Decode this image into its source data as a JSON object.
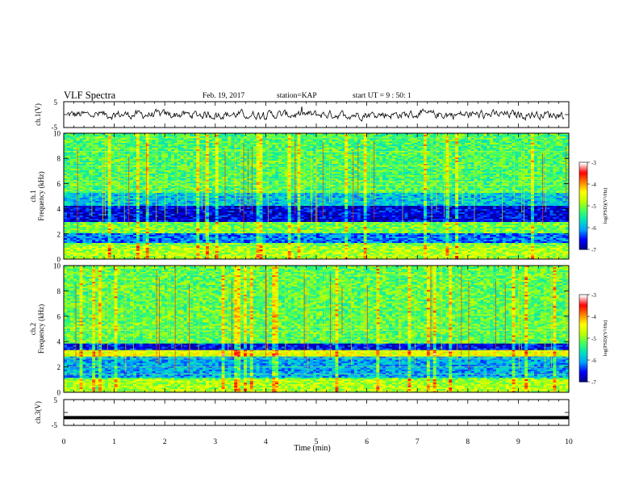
{
  "header": {
    "title": "VLF Spectra",
    "date": "Feb. 19, 2017",
    "station": "station=KAP",
    "start": "start UT =  9 : 50: 1"
  },
  "chart_data": [
    {
      "type": "line",
      "ylabel": "ch.1(V)",
      "ylim": [
        -5,
        5
      ],
      "yticks": [
        "5",
        "-5"
      ],
      "xlim": [
        0,
        10
      ],
      "description_values": "noisy waveform centered near 0 V, amplitude roughly -2.5 to +2.5 V"
    },
    {
      "type": "heatmap",
      "ylabel_line1": "ch.1",
      "ylabel_line2": "Frequency (kHz)",
      "ylim": [
        0,
        10
      ],
      "yticks": [
        "0",
        "2",
        "4",
        "6",
        "8",
        "10"
      ],
      "xlim": [
        0,
        10
      ],
      "colorbar": {
        "label": "log(PSD)(V²/Hz)",
        "range": [
          -7,
          -3
        ],
        "ticks": [
          "-3",
          "-4",
          "-5",
          "-6",
          "-7"
        ]
      }
    },
    {
      "type": "heatmap",
      "ylabel_line1": "ch.2",
      "ylabel_line2": "Frequency (kHz)",
      "ylim": [
        0,
        10
      ],
      "yticks": [
        "0",
        "2",
        "4",
        "6",
        "8",
        "10"
      ],
      "xlim": [
        0,
        10
      ],
      "colorbar": {
        "label": "log(PSD)(V²/Hz)",
        "range": [
          -7,
          -3
        ],
        "ticks": [
          "-3",
          "-4",
          "-5",
          "-6",
          "-7"
        ]
      }
    },
    {
      "type": "line",
      "ylabel": "ch.3(V)",
      "ylim": [
        -5,
        5
      ],
      "yticks": [
        "5",
        "-5"
      ],
      "xlim": [
        0,
        10
      ],
      "constant_value": -2
    }
  ],
  "xaxis": {
    "label": "Time (min)",
    "ticks": [
      "0",
      "1",
      "2",
      "3",
      "4",
      "5",
      "6",
      "7",
      "8",
      "9",
      "10"
    ]
  },
  "colors": {
    "colormap": [
      "#00008b",
      "#0000ff",
      "#00a0ff",
      "#00e0c0",
      "#40ff60",
      "#c0ff00",
      "#ffff00",
      "#ff8000",
      "#ff0000",
      "#ffffff"
    ],
    "line": "#000000"
  }
}
